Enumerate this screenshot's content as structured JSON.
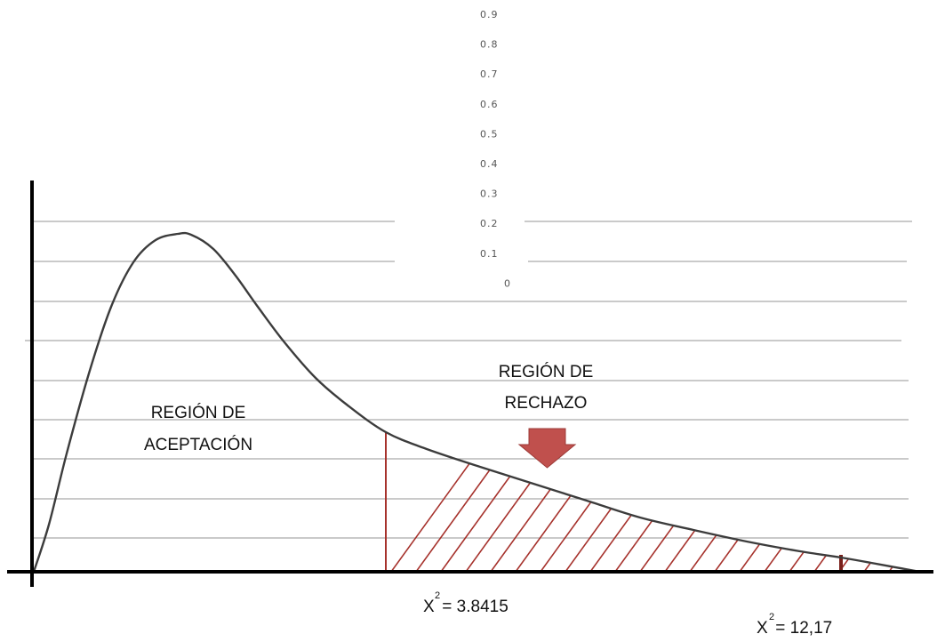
{
  "y_ticks": [
    "0.9",
    "0.8",
    "0.7",
    "0.6",
    "0.5",
    "0.4",
    "0.3",
    "0.2",
    "0.1",
    "0"
  ],
  "labels": {
    "acceptance_line1": "REGIÓN DE",
    "acceptance_line2": "ACEPTACIÓN",
    "rejection_line1": "REGIÓN DE",
    "rejection_line2": "RECHAZO",
    "critical_x": "X",
    "critical_sup": "2",
    "critical_value": " = 3.8415",
    "calc_x": "X",
    "calc_sup": "2",
    "calc_value": " = 12,17"
  },
  "colors": {
    "curve": "#3c3c3c",
    "hatch": "#a6322c",
    "arrow": "#c0504d",
    "grid": "#aaaaaa",
    "axis": "#000000"
  },
  "icons": {
    "arrow": "down-arrow-icon"
  }
}
